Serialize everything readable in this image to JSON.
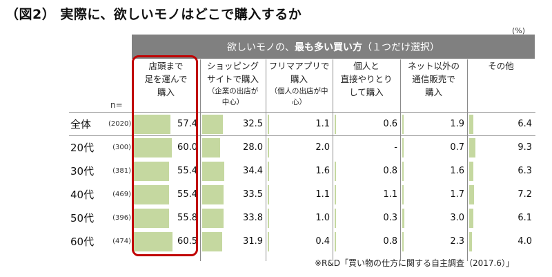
{
  "title": "（図2） 実際に、欲しいモノはどこで購入するか",
  "unit_label": "(%)",
  "band": {
    "prefix": "欲しいモノの、",
    "emphasis": "最も多い買い方",
    "suffix": "（１つだけ選択）"
  },
  "n_label": "n=",
  "columns": [
    {
      "line1": "店頭まで",
      "line2": "足を運んで",
      "line3": "購入",
      "sub": ""
    },
    {
      "line1": "ショッピング",
      "line2": "サイトで購入",
      "line3": "",
      "sub": "（企業の出店が中心）"
    },
    {
      "line1": "フリマアプリで",
      "line2": "購入",
      "line3": "",
      "sub": "（個人の出店が中心）"
    },
    {
      "line1": "個人と",
      "line2": "直接やりとり",
      "line3": "して購入",
      "sub": ""
    },
    {
      "line1": "ネット以外の",
      "line2": "通信販売で",
      "line3": "購入",
      "sub": ""
    },
    {
      "line1": "その他",
      "line2": "",
      "line3": "",
      "sub": ""
    }
  ],
  "rows": [
    {
      "label": "全体",
      "n": "(2020)",
      "values": [
        "57.4",
        "32.5",
        "1.1",
        "0.6",
        "1.9",
        "6.4"
      ]
    },
    {
      "label": "20代",
      "n": "(300)",
      "values": [
        "60.0",
        "28.0",
        "2.0",
        "-",
        "0.7",
        "9.3"
      ]
    },
    {
      "label": "30代",
      "n": "(381)",
      "values": [
        "55.4",
        "34.4",
        "1.6",
        "0.8",
        "1.6",
        "6.3"
      ]
    },
    {
      "label": "40代",
      "n": "(469)",
      "values": [
        "55.4",
        "33.5",
        "1.1",
        "1.1",
        "1.7",
        "7.2"
      ]
    },
    {
      "label": "50代",
      "n": "(396)",
      "values": [
        "55.8",
        "33.8",
        "1.0",
        "0.3",
        "3.0",
        "6.1"
      ]
    },
    {
      "label": "60代",
      "n": "(474)",
      "values": [
        "60.5",
        "31.9",
        "0.4",
        "0.8",
        "2.3",
        "4.0"
      ]
    }
  ],
  "source": "※R&D「買い物の仕方に関する自主調査（2017.6）」",
  "colors": {
    "bar": "#c5d8a0",
    "band": "#808080",
    "highlight": "#c00000"
  },
  "chart_data": {
    "type": "table",
    "title": "（図2） 実際に、欲しいモノはどこで購入するか",
    "subtitle": "欲しいモノの、最も多い買い方（１つだけ選択）",
    "unit": "%",
    "categories": [
      "全体",
      "20代",
      "30代",
      "40代",
      "50代",
      "60代"
    ],
    "sample_sizes": [
      2020,
      300,
      381,
      469,
      396,
      474
    ],
    "series": [
      {
        "name": "店頭まで足を運んで購入",
        "values": [
          57.4,
          60.0,
          55.4,
          55.4,
          55.8,
          60.5
        ]
      },
      {
        "name": "ショッピングサイトで購入（企業の出店が中心）",
        "values": [
          32.5,
          28.0,
          34.4,
          33.5,
          33.8,
          31.9
        ]
      },
      {
        "name": "フリマアプリで購入（個人の出店が中心）",
        "values": [
          1.1,
          2.0,
          1.6,
          1.1,
          1.0,
          0.4
        ]
      },
      {
        "name": "個人と直接やりとりして購入",
        "values": [
          0.6,
          null,
          0.8,
          1.1,
          0.3,
          0.8
        ]
      },
      {
        "name": "ネット以外の通信販売で購入",
        "values": [
          1.9,
          0.7,
          1.6,
          1.7,
          3.0,
          2.3
        ]
      },
      {
        "name": "その他",
        "values": [
          6.4,
          9.3,
          6.3,
          7.2,
          6.1,
          4.0
        ]
      }
    ],
    "annotations": [
      "店頭まで足を運んで購入 column highlighted with red rounded box"
    ],
    "source": "※R&D「買い物の仕方に関する自主調査（2017.6）」"
  }
}
